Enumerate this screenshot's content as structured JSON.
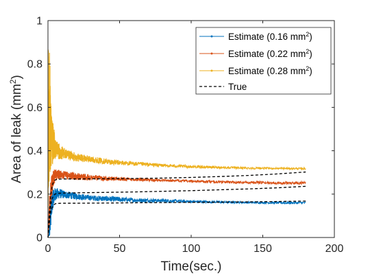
{
  "chart_data": {
    "type": "line",
    "title": "",
    "xlabel": "Time(sec.)",
    "ylabel_main": "Area of leak (mm",
    "ylabel_sup": "2",
    "ylabel_close": ")",
    "xlim": [
      0,
      200
    ],
    "ylim": [
      0,
      1
    ],
    "xticks": [
      0,
      50,
      100,
      150,
      200
    ],
    "xtick_labels": [
      "0",
      "50",
      "100",
      "150",
      "200"
    ],
    "yticks": [
      0,
      0.2,
      0.4,
      0.6,
      0.8,
      1
    ],
    "ytick_labels": [
      "0",
      "0.2",
      "0.4",
      "0.6",
      "0.8",
      "1"
    ],
    "grid": false,
    "legend_position": "top-right",
    "series": [
      {
        "name_main": "Estimate (0.16 mm",
        "name_sup": "2",
        "name_close": ")",
        "color": "#0072BD",
        "style": "noisy-estimate",
        "x": [
          0,
          1,
          2,
          3,
          5,
          8,
          12,
          20,
          30,
          45,
          60,
          80,
          100,
          120,
          140,
          160,
          180
        ],
        "lower": [
          0,
          0.0,
          0.05,
          0.12,
          0.17,
          0.18,
          0.18,
          0.175,
          0.17,
          0.165,
          0.162,
          0.162,
          0.16,
          0.158,
          0.157,
          0.155,
          0.155
        ],
        "upper": [
          0,
          0.1,
          0.18,
          0.22,
          0.23,
          0.225,
          0.215,
          0.205,
          0.195,
          0.19,
          0.182,
          0.178,
          0.172,
          0.168,
          0.166,
          0.165,
          0.165
        ]
      },
      {
        "name_main": "Estimate (0.22 mm",
        "name_sup": "2",
        "name_close": ")",
        "color": "#D95319",
        "style": "noisy-estimate",
        "x": [
          0,
          1,
          2,
          3,
          5,
          8,
          12,
          20,
          30,
          45,
          60,
          80,
          100,
          120,
          140,
          160,
          180
        ],
        "lower": [
          0,
          0.05,
          0.15,
          0.2,
          0.26,
          0.27,
          0.268,
          0.265,
          0.263,
          0.262,
          0.26,
          0.258,
          0.255,
          0.25,
          0.248,
          0.246,
          0.244
        ],
        "upper": [
          0,
          0.2,
          0.27,
          0.3,
          0.32,
          0.31,
          0.305,
          0.298,
          0.29,
          0.28,
          0.275,
          0.27,
          0.265,
          0.262,
          0.26,
          0.258,
          0.258
        ]
      },
      {
        "name_main": "Estimate (0.28 mm",
        "name_sup": "2",
        "name_close": ")",
        "color": "#EDB120",
        "style": "noisy-estimate",
        "x": [
          0,
          0.5,
          1,
          2,
          3,
          5,
          8,
          12,
          20,
          30,
          45,
          60,
          80,
          100,
          120,
          140,
          160,
          180
        ],
        "lower": [
          0.0,
          0.2,
          0.25,
          0.3,
          0.33,
          0.36,
          0.36,
          0.36,
          0.35,
          0.345,
          0.335,
          0.33,
          0.325,
          0.32,
          0.318,
          0.315,
          0.314,
          0.313
        ],
        "upper": [
          1.0,
          1.0,
          0.9,
          0.65,
          0.55,
          0.47,
          0.43,
          0.41,
          0.39,
          0.375,
          0.36,
          0.35,
          0.34,
          0.333,
          0.328,
          0.325,
          0.323,
          0.322
        ]
      },
      {
        "name": "True",
        "color": "#000000",
        "style": "dashed",
        "curves": [
          {
            "x": [
              0,
              1,
              2,
              3,
              4,
              5,
              6,
              10,
              20,
              40,
              60,
              80,
              100,
              120,
              140,
              160,
              180
            ],
            "y": [
              0,
              0.07,
              0.12,
              0.14,
              0.15,
              0.155,
              0.157,
              0.158,
              0.158,
              0.159,
              0.16,
              0.161,
              0.162,
              0.163,
              0.164,
              0.166,
              0.168
            ]
          },
          {
            "x": [
              0,
              1,
              2,
              3,
              4,
              5,
              6,
              10,
              20,
              40,
              60,
              80,
              100,
              120,
              140,
              160,
              180
            ],
            "y": [
              0,
              0.09,
              0.15,
              0.18,
              0.195,
              0.2,
              0.203,
              0.205,
              0.206,
              0.208,
              0.21,
              0.213,
              0.216,
              0.22,
              0.224,
              0.229,
              0.236
            ]
          },
          {
            "x": [
              0,
              1,
              2,
              3,
              4,
              5,
              6,
              10,
              20,
              40,
              60,
              80,
              100,
              120,
              140,
              160,
              180
            ],
            "y": [
              0,
              0.12,
              0.2,
              0.24,
              0.258,
              0.265,
              0.268,
              0.27,
              0.27,
              0.271,
              0.272,
              0.274,
              0.277,
              0.281,
              0.286,
              0.293,
              0.302
            ]
          }
        ]
      }
    ]
  }
}
